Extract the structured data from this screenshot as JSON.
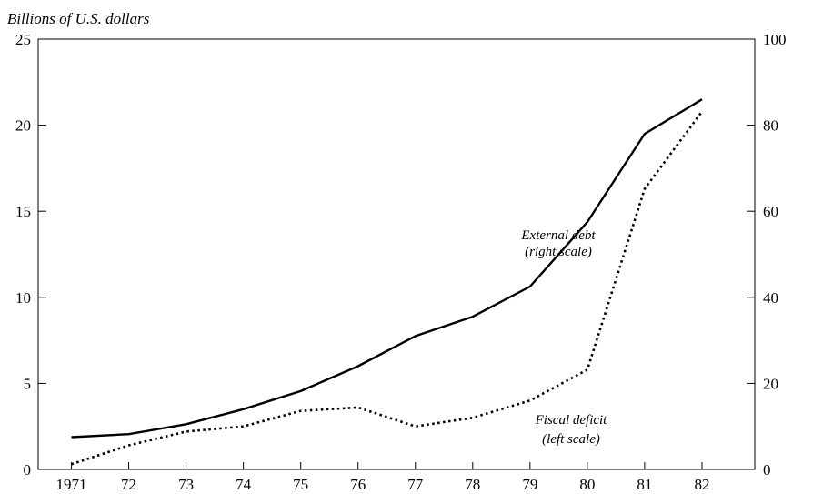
{
  "chart_data": {
    "type": "line",
    "title": "",
    "ylabel": "Billions of U.S. dollars",
    "xlabel": "",
    "categories": [
      "1971",
      "72",
      "73",
      "74",
      "75",
      "76",
      "77",
      "78",
      "79",
      "80",
      "81",
      "82"
    ],
    "y_left": {
      "range": [
        0,
        25
      ],
      "ticks": [
        0,
        5,
        10,
        15,
        20,
        25
      ]
    },
    "y_right": {
      "range": [
        0,
        100
      ],
      "ticks": [
        0,
        20,
        40,
        60,
        80,
        100
      ]
    },
    "grid": false,
    "legend": "none",
    "series": [
      {
        "name": "External debt",
        "axis": "right",
        "style": "solid",
        "values": [
          7.5,
          8.2,
          10.5,
          14.0,
          18.2,
          24.0,
          31.0,
          35.5,
          42.5,
          57.5,
          78.0,
          86.0
        ]
      },
      {
        "name": "Fiscal deficit",
        "axis": "left",
        "style": "dotted",
        "values": [
          0.3,
          1.4,
          2.2,
          2.5,
          3.4,
          3.6,
          2.5,
          3.0,
          4.0,
          5.8,
          16.3,
          20.8
        ]
      }
    ],
    "annotations": [
      {
        "series": 0,
        "lines": [
          "External debt",
          "(right scale)"
        ]
      },
      {
        "series": 1,
        "lines": [
          "Fiscal deficit",
          "(left scale)"
        ]
      }
    ]
  }
}
